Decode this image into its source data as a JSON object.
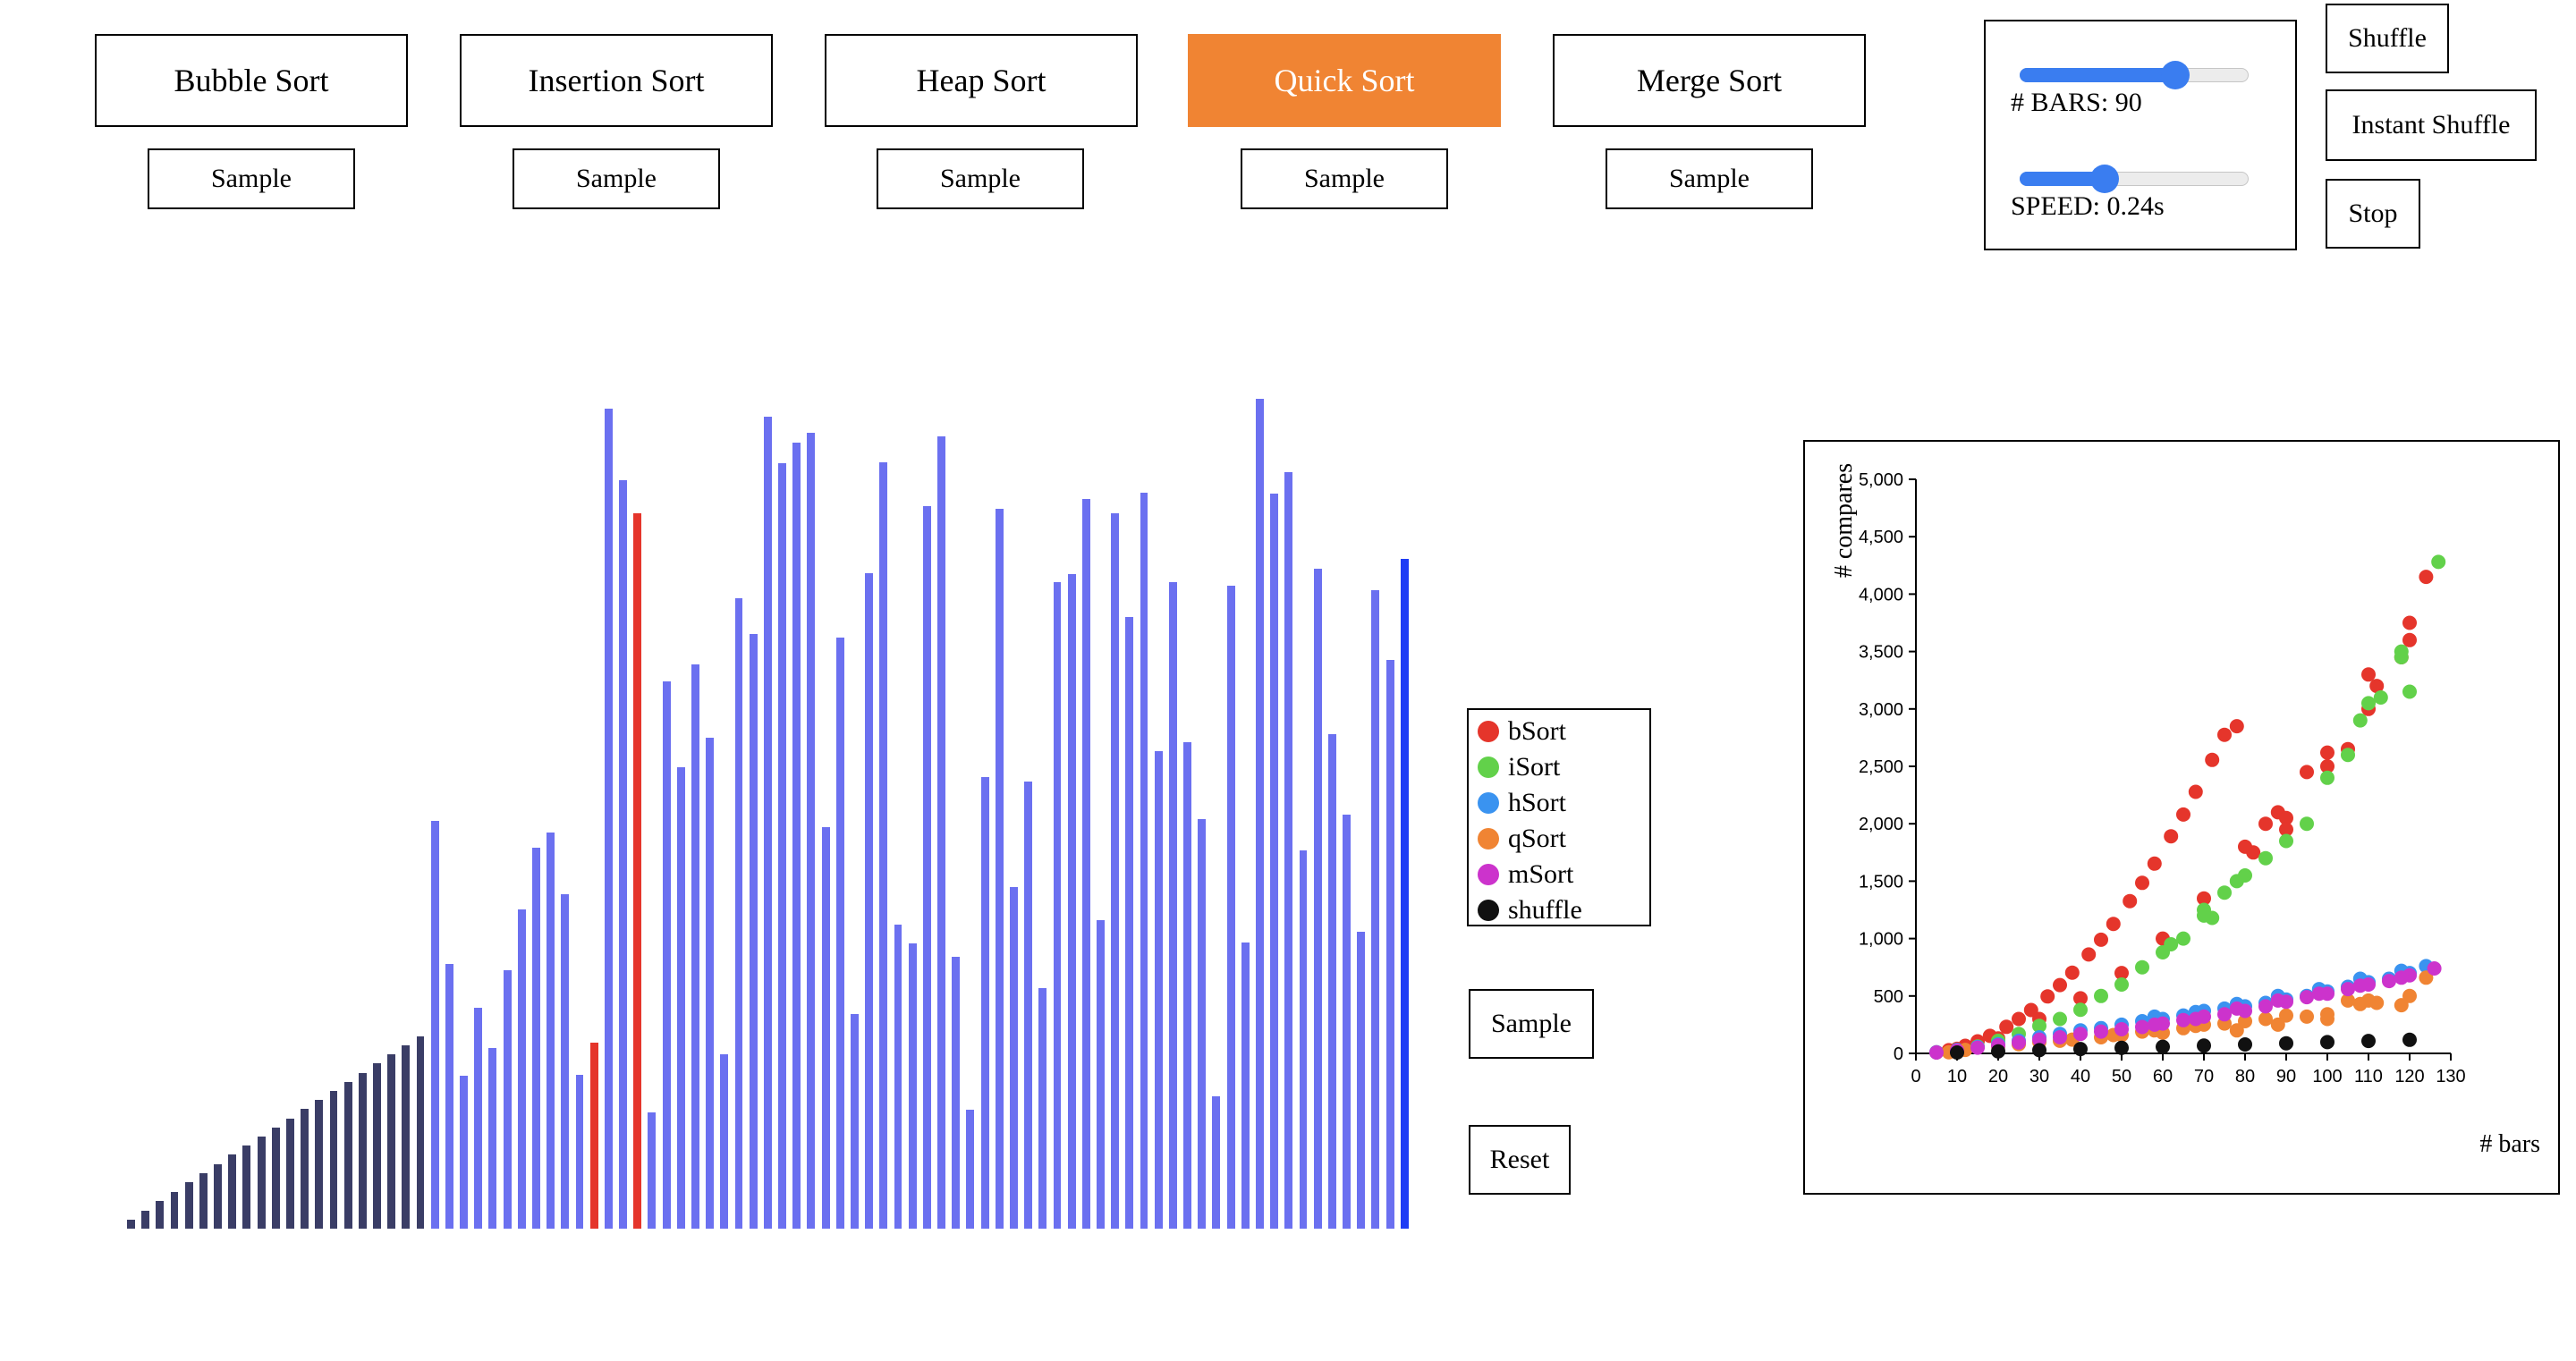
{
  "algorithms": [
    {
      "label": "Bubble Sort",
      "active": false
    },
    {
      "label": "Insertion Sort",
      "active": false
    },
    {
      "label": "Heap Sort",
      "active": false
    },
    {
      "label": "Quick Sort",
      "active": true
    },
    {
      "label": "Merge Sort",
      "active": false
    }
  ],
  "sample_label": "Sample",
  "controls": {
    "bars_label": "# BARS: 90",
    "bars_value": 90,
    "bars_fraction": 0.68,
    "speed_label": "SPEED: 0.24s",
    "speed_fraction": 0.37
  },
  "side_buttons": {
    "shuffle": "Shuffle",
    "instant_shuffle": "Instant Shuffle",
    "stop": "Stop"
  },
  "bottom_buttons": {
    "sample": "Sample",
    "reset": "Reset"
  },
  "colors": {
    "accent": "#f08433",
    "bar_default": "#6b70f0",
    "bar_sorted": "#3a3d66",
    "bar_compare": "#e5352b",
    "bar_pivot": "#1f3cf5",
    "slider": "#3a7df0"
  },
  "bars": {
    "relative_heights": [
      0.011,
      0.022,
      0.033,
      0.044,
      0.056,
      0.067,
      0.078,
      0.089,
      0.1,
      0.111,
      0.122,
      0.133,
      0.144,
      0.155,
      0.166,
      0.177,
      0.188,
      0.199,
      0.21,
      0.221,
      0.232,
      0.491,
      0.319,
      0.184,
      0.266,
      0.218,
      0.311,
      0.385,
      0.459,
      0.477,
      0.403,
      0.185,
      0.224,
      0.988,
      0.902,
      0.862,
      0.14,
      0.659,
      0.556,
      0.68,
      0.592,
      0.21,
      0.76,
      0.717,
      0.979,
      0.922,
      0.947,
      0.959,
      0.484,
      0.712,
      0.259,
      0.79,
      0.924,
      0.366,
      0.344,
      0.871,
      0.955,
      0.328,
      0.143,
      0.544,
      0.867,
      0.412,
      0.539,
      0.29,
      0.779,
      0.789,
      0.879,
      0.372,
      0.862,
      0.737,
      0.887,
      0.575,
      0.779,
      0.586,
      0.494,
      0.16,
      0.775,
      0.345,
      1.0,
      0.886,
      0.912,
      0.456,
      0.795,
      0.596,
      0.499,
      0.358,
      0.769,
      0.685,
      0.807
    ],
    "states": [
      "sorted",
      "sorted",
      "sorted",
      "sorted",
      "sorted",
      "sorted",
      "sorted",
      "sorted",
      "sorted",
      "sorted",
      "sorted",
      "sorted",
      "sorted",
      "sorted",
      "sorted",
      "sorted",
      "sorted",
      "sorted",
      "sorted",
      "sorted",
      "sorted",
      "default",
      "default",
      "default",
      "default",
      "default",
      "default",
      "default",
      "default",
      "default",
      "default",
      "default",
      "compare",
      "default",
      "default",
      "compare",
      "default",
      "default",
      "default",
      "default",
      "default",
      "default",
      "default",
      "default",
      "default",
      "default",
      "default",
      "default",
      "default",
      "default",
      "default",
      "default",
      "default",
      "default",
      "default",
      "default",
      "default",
      "default",
      "default",
      "default",
      "default",
      "default",
      "default",
      "default",
      "default",
      "default",
      "default",
      "default",
      "default",
      "default",
      "default",
      "default",
      "default",
      "default",
      "default",
      "default",
      "default",
      "default",
      "default",
      "default",
      "default",
      "default",
      "default",
      "default",
      "default",
      "default",
      "default",
      "default",
      "pivot"
    ]
  },
  "legend": [
    {
      "label": "bSort",
      "color": "#e5352b"
    },
    {
      "label": "iSort",
      "color": "#62d14a"
    },
    {
      "label": "hSort",
      "color": "#3a93f0"
    },
    {
      "label": "qSort",
      "color": "#f08433"
    },
    {
      "label": "mSort",
      "color": "#cc33cc"
    },
    {
      "label": "shuffle",
      "color": "#111111"
    }
  ],
  "chart_data": {
    "type": "scatter",
    "xlabel": "# bars",
    "ylabel": "# compares",
    "xlim": [
      0,
      130
    ],
    "ylim": [
      0,
      5000
    ],
    "xticks": [
      "0",
      "10",
      "20",
      "30",
      "40",
      "50",
      "60",
      "70",
      "80",
      "90",
      "100",
      "110",
      "120",
      "130"
    ],
    "yticks": [
      "0",
      "500",
      "1,000",
      "1,500",
      "2,000",
      "2,500",
      "3,000",
      "3,500",
      "4,000",
      "4,500",
      "5,000"
    ],
    "series": [
      {
        "name": "bSort",
        "color": "#e5352b",
        "points": [
          [
            5,
            10
          ],
          [
            8,
            28
          ],
          [
            12,
            66
          ],
          [
            15,
            105
          ],
          [
            18,
            153
          ],
          [
            22,
            231
          ],
          [
            25,
            300
          ],
          [
            28,
            378
          ],
          [
            32,
            496
          ],
          [
            35,
            595
          ],
          [
            38,
            703
          ],
          [
            42,
            861
          ],
          [
            45,
            990
          ],
          [
            48,
            1128
          ],
          [
            52,
            1326
          ],
          [
            55,
            1485
          ],
          [
            58,
            1653
          ],
          [
            62,
            1891
          ],
          [
            65,
            2080
          ],
          [
            68,
            2278
          ],
          [
            72,
            2556
          ],
          [
            75,
            2775
          ],
          [
            78,
            2850
          ],
          [
            82,
            1750
          ],
          [
            85,
            2000
          ],
          [
            88,
            2100
          ],
          [
            90,
            2050
          ],
          [
            95,
            2450
          ],
          [
            100,
            2500
          ],
          [
            105,
            2650
          ],
          [
            110,
            3000
          ],
          [
            112,
            3200
          ],
          [
            118,
            3450
          ],
          [
            120,
            3600
          ],
          [
            124,
            4150
          ],
          [
            120,
            3750
          ],
          [
            110,
            3300
          ],
          [
            100,
            2620
          ],
          [
            90,
            1950
          ],
          [
            80,
            1800
          ],
          [
            70,
            1350
          ],
          [
            60,
            1000
          ],
          [
            50,
            700
          ],
          [
            40,
            480
          ],
          [
            30,
            300
          ],
          [
            20,
            130
          ],
          [
            10,
            40
          ]
        ]
      },
      {
        "name": "iSort",
        "color": "#62d14a",
        "points": [
          [
            5,
            8
          ],
          [
            10,
            30
          ],
          [
            15,
            60
          ],
          [
            20,
            110
          ],
          [
            25,
            170
          ],
          [
            30,
            240
          ],
          [
            35,
            300
          ],
          [
            40,
            380
          ],
          [
            45,
            500
          ],
          [
            50,
            600
          ],
          [
            55,
            750
          ],
          [
            60,
            880
          ],
          [
            65,
            1000
          ],
          [
            70,
            1200
          ],
          [
            72,
            1180
          ],
          [
            75,
            1400
          ],
          [
            80,
            1550
          ],
          [
            85,
            1700
          ],
          [
            90,
            1850
          ],
          [
            95,
            2000
          ],
          [
            100,
            2400
          ],
          [
            105,
            2600
          ],
          [
            108,
            2900
          ],
          [
            110,
            3050
          ],
          [
            113,
            3100
          ],
          [
            118,
            3450
          ],
          [
            120,
            3150
          ],
          [
            127,
            4280
          ],
          [
            118,
            3500
          ],
          [
            62,
            950
          ],
          [
            70,
            1250
          ],
          [
            78,
            1500
          ]
        ]
      },
      {
        "name": "hSort",
        "color": "#3a93f0",
        "points": [
          [
            5,
            10
          ],
          [
            10,
            30
          ],
          [
            15,
            55
          ],
          [
            20,
            80
          ],
          [
            25,
            110
          ],
          [
            30,
            140
          ],
          [
            35,
            170
          ],
          [
            40,
            200
          ],
          [
            45,
            220
          ],
          [
            50,
            250
          ],
          [
            55,
            280
          ],
          [
            60,
            300
          ],
          [
            65,
            330
          ],
          [
            70,
            370
          ],
          [
            75,
            390
          ],
          [
            80,
            410
          ],
          [
            85,
            440
          ],
          [
            90,
            470
          ],
          [
            95,
            500
          ],
          [
            100,
            540
          ],
          [
            105,
            580
          ],
          [
            110,
            620
          ],
          [
            115,
            650
          ],
          [
            120,
            700
          ],
          [
            124,
            760
          ],
          [
            118,
            720
          ],
          [
            108,
            650
          ],
          [
            98,
            560
          ],
          [
            88,
            500
          ],
          [
            78,
            430
          ],
          [
            68,
            360
          ],
          [
            58,
            320
          ]
        ]
      },
      {
        "name": "qSort",
        "color": "#f08433",
        "points": [
          [
            8,
            10
          ],
          [
            12,
            30
          ],
          [
            20,
            60
          ],
          [
            25,
            80
          ],
          [
            30,
            100
          ],
          [
            38,
            120
          ],
          [
            45,
            140
          ],
          [
            50,
            160
          ],
          [
            55,
            190
          ],
          [
            60,
            180
          ],
          [
            65,
            220
          ],
          [
            70,
            250
          ],
          [
            75,
            260
          ],
          [
            80,
            280
          ],
          [
            85,
            300
          ],
          [
            90,
            330
          ],
          [
            95,
            320
          ],
          [
            100,
            340
          ],
          [
            105,
            460
          ],
          [
            108,
            430
          ],
          [
            112,
            440
          ],
          [
            118,
            420
          ],
          [
            120,
            500
          ],
          [
            124,
            660
          ],
          [
            110,
            460
          ],
          [
            100,
            300
          ],
          [
            88,
            250
          ],
          [
            78,
            200
          ],
          [
            68,
            240
          ],
          [
            58,
            200
          ],
          [
            48,
            160
          ],
          [
            35,
            110
          ]
        ]
      },
      {
        "name": "mSort",
        "color": "#cc33cc",
        "points": [
          [
            5,
            8
          ],
          [
            10,
            25
          ],
          [
            15,
            50
          ],
          [
            20,
            70
          ],
          [
            25,
            95
          ],
          [
            30,
            120
          ],
          [
            35,
            140
          ],
          [
            40,
            170
          ],
          [
            45,
            190
          ],
          [
            50,
            210
          ],
          [
            55,
            230
          ],
          [
            60,
            260
          ],
          [
            65,
            290
          ],
          [
            70,
            320
          ],
          [
            75,
            340
          ],
          [
            80,
            370
          ],
          [
            85,
            410
          ],
          [
            90,
            450
          ],
          [
            95,
            490
          ],
          [
            100,
            520
          ],
          [
            105,
            560
          ],
          [
            110,
            600
          ],
          [
            115,
            630
          ],
          [
            120,
            680
          ],
          [
            126,
            740
          ],
          [
            118,
            660
          ],
          [
            108,
            590
          ],
          [
            98,
            520
          ],
          [
            88,
            460
          ],
          [
            78,
            390
          ],
          [
            68,
            300
          ],
          [
            58,
            250
          ]
        ]
      },
      {
        "name": "shuffle",
        "color": "#111111",
        "points": [
          [
            10,
            8
          ],
          [
            20,
            18
          ],
          [
            30,
            28
          ],
          [
            40,
            38
          ],
          [
            50,
            48
          ],
          [
            60,
            58
          ],
          [
            70,
            68
          ],
          [
            80,
            78
          ],
          [
            90,
            88
          ],
          [
            100,
            98
          ],
          [
            110,
            108
          ],
          [
            120,
            118
          ]
        ]
      }
    ]
  }
}
